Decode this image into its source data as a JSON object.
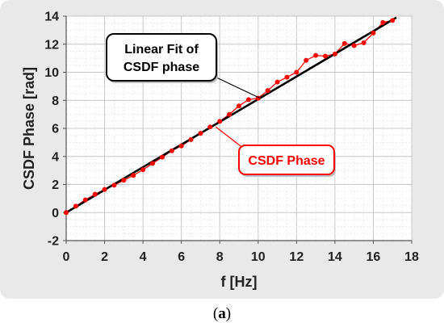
{
  "chart_data": {
    "type": "line",
    "xlabel": "f [Hz]",
    "ylabel": "CSDF Phase [rad]",
    "xlim": [
      0,
      18
    ],
    "ylim": [
      -2,
      14
    ],
    "xticks": [
      0,
      2,
      4,
      6,
      8,
      10,
      12,
      14,
      16,
      18
    ],
    "yticks": [
      -2,
      0,
      2,
      4,
      6,
      8,
      10,
      12,
      14
    ],
    "grid": true,
    "series": [
      {
        "name": "CSDF Phase",
        "color": "#ff0000",
        "style": "line-markers",
        "x": [
          0,
          0.5,
          1,
          1.5,
          2,
          2.5,
          3,
          3.5,
          4,
          4.5,
          5,
          5.5,
          6,
          6.5,
          7,
          7.5,
          8,
          8.5,
          9,
          9.5,
          10,
          10.5,
          11,
          11.5,
          12,
          12.5,
          13,
          13.5,
          14,
          14.5,
          15,
          15.5,
          16,
          16.5,
          17
        ],
        "y": [
          0.0,
          0.45,
          0.9,
          1.3,
          1.65,
          1.95,
          2.3,
          2.65,
          3.05,
          3.5,
          3.95,
          4.4,
          4.75,
          5.2,
          5.65,
          6.1,
          6.5,
          7.0,
          7.6,
          8.05,
          8.15,
          8.7,
          9.3,
          9.65,
          10.0,
          10.85,
          11.2,
          11.15,
          11.3,
          12.05,
          11.9,
          12.1,
          12.8,
          13.55,
          13.7
        ]
      },
      {
        "name": "Linear Fit of CSDF phase",
        "color": "#000000",
        "style": "line",
        "x": [
          0,
          17.2
        ],
        "y": [
          0.0,
          13.9
        ]
      }
    ],
    "annotations": [
      {
        "id": "fit",
        "lines": [
          "Linear Fit of",
          "CSDF phase"
        ],
        "color": "#000000",
        "pointer": [
          10.1,
          8.15
        ]
      },
      {
        "id": "phase",
        "lines": [
          "CSDF Phase"
        ],
        "color": "#ff0000",
        "pointer": [
          7.8,
          6.1
        ]
      }
    ]
  },
  "caption": {
    "prefix": "(",
    "label": "a",
    "suffix": ")"
  }
}
